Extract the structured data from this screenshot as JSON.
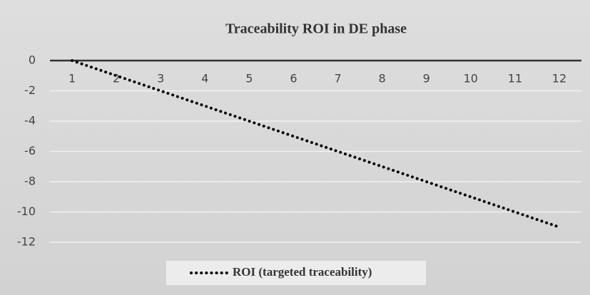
{
  "chart_data": {
    "type": "line",
    "title": "Traceability ROI in DE phase",
    "categories": [
      "1",
      "2",
      "3",
      "4",
      "5",
      "6",
      "7",
      "8",
      "9",
      "10",
      "11",
      "12"
    ],
    "series": [
      {
        "name": "ROI (targeted traceability)",
        "color": "#000000",
        "values": [
          0,
          -1,
          -2,
          -3,
          -4,
          -5,
          -6,
          -7,
          -8,
          -9,
          -10,
          -11
        ]
      }
    ],
    "ylim": [
      -12,
      0
    ],
    "yticks": [
      0,
      -2,
      -4,
      -6,
      -8,
      -10,
      -12
    ],
    "grid": true,
    "legend": "bottom"
  }
}
